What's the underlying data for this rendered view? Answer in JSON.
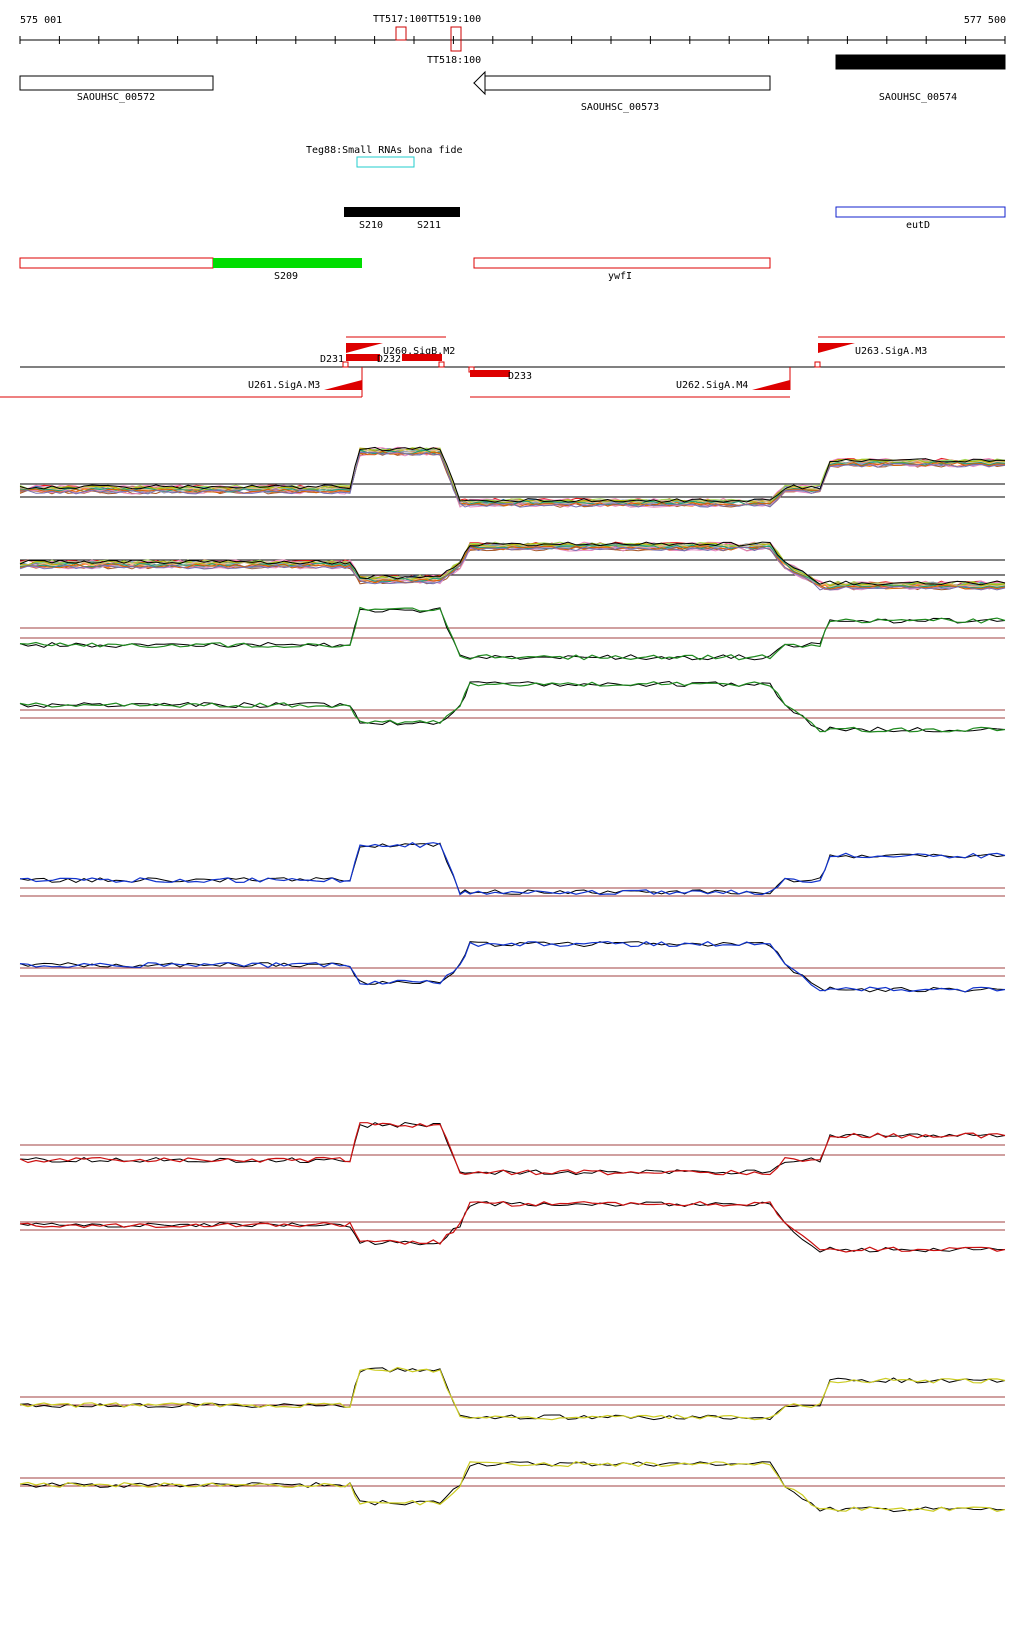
{
  "ruler": {
    "start_label": "575 001",
    "end_label": "577 500",
    "start": 575001,
    "end": 577500
  },
  "terminators": [
    {
      "label": "TT517:100",
      "pos": 575960,
      "row": "top"
    },
    {
      "label": "TT519:100",
      "pos": 576113,
      "row": "top"
    },
    {
      "label": "TT518:100",
      "pos": 576113,
      "row": "bottom"
    }
  ],
  "genes": [
    {
      "name": "SAOUHSC_00572",
      "start": 575001,
      "end": 575490,
      "strand": "+",
      "fill": "none"
    },
    {
      "name": "SAOUHSC_00573",
      "start": 576190,
      "end": 576950,
      "strand": "-",
      "fill": "none"
    },
    {
      "name": "SAOUHSC_00574",
      "start": 577070,
      "end": 577500,
      "strand": "+",
      "fill": "solid"
    }
  ],
  "small_rna_track": {
    "label": "Teg88:Small RNAs bona fide",
    "start": 575885,
    "end": 576030,
    "color": "#22cccc"
  },
  "srna_features": [
    {
      "label": "S210",
      "start": 575830,
      "end": 575975
    },
    {
      "label": "S211",
      "start": 575975,
      "end": 576125
    }
  ],
  "eut_feature": {
    "label": "eutD",
    "start": 577070,
    "end": 577500,
    "color": "#1122cc"
  },
  "operons": [
    {
      "label": "",
      "start": 575001,
      "end": 575490,
      "color": "#dd0000",
      "fill": "none"
    },
    {
      "label": "S209",
      "start": 575490,
      "end": 575870,
      "color": "#00dd00",
      "fill": "solid"
    },
    {
      "label": "ywfI",
      "start": 576190,
      "end": 576950,
      "color": "#dd0000",
      "fill": "none"
    }
  ],
  "transcripts_up": [
    {
      "label": "U260.SigB.M2",
      "start": 575835,
      "end": 576100
    },
    {
      "label": "U263.SigA.M3",
      "start": 577030,
      "end": 577500
    }
  ],
  "transcripts_down": [
    {
      "label": "U261.SigA.M3",
      "start": 574950,
      "end": 575870
    },
    {
      "label": "U262.SigA.M4",
      "start": 576185,
      "end": 576975
    }
  ],
  "transcription_starts": [
    {
      "label": "D231",
      "start": 575835,
      "end": 575920,
      "row": "above"
    },
    {
      "label": "D232",
      "start": 575975,
      "end": 576110,
      "row": "above"
    },
    {
      "label": "D233",
      "start": 576190,
      "end": 576295,
      "row": "below"
    }
  ],
  "profile_colors": {
    "condition_1": "#1f8a1f",
    "condition_2": "#1133cc",
    "condition_3": "#cc1111",
    "condition_4": "#cccc22",
    "replicate": "#000000",
    "threshold": "#a04040"
  }
}
